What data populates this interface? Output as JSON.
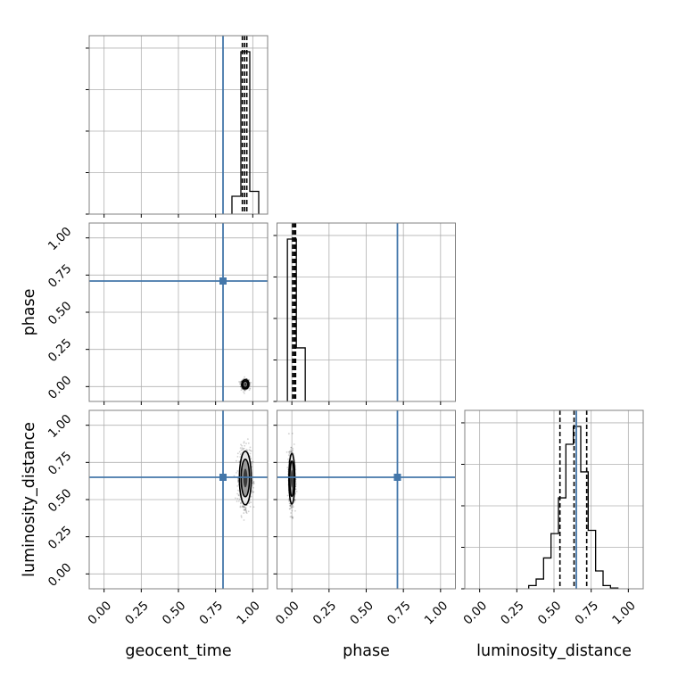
{
  "chart_data": {
    "type": "corner",
    "parameters": [
      "geocent_time",
      "phase",
      "luminosity_distance"
    ],
    "truths": [
      0.8,
      0.71,
      0.65
    ],
    "truth_color": "#4477aa",
    "axis_range": [
      -0.1,
      1.1
    ],
    "tick_values": [
      0.0,
      0.25,
      0.5,
      0.75,
      1.0
    ],
    "tick_labels": [
      "0.00",
      "0.25",
      "0.50",
      "0.75",
      "1.00"
    ],
    "grid": true,
    "histograms": [
      {
        "parameter": "geocent_time",
        "bin_edges": [
          0.86,
          0.92,
          0.98,
          1.04
        ],
        "counts": [
          0.11,
          1.0,
          0.14
        ],
        "quantiles": [
          0.93,
          0.945,
          0.96
        ]
      },
      {
        "parameter": "phase",
        "bin_edges": [
          -0.03,
          0.03,
          0.09
        ],
        "counts": [
          1.0,
          0.33
        ],
        "quantiles": [
          0.005,
          0.015,
          0.025
        ]
      },
      {
        "parameter": "luminosity_distance",
        "bin_edges": [
          0.33,
          0.38,
          0.43,
          0.48,
          0.53,
          0.58,
          0.63,
          0.68,
          0.73,
          0.78,
          0.83,
          0.88,
          0.93
        ],
        "counts": [
          0.02,
          0.06,
          0.19,
          0.34,
          0.56,
          0.89,
          1.0,
          0.72,
          0.36,
          0.11,
          0.02,
          0.005
        ],
        "quantiles": [
          0.54,
          0.635,
          0.72
        ]
      }
    ],
    "scatter_panels": [
      {
        "x": "geocent_time",
        "y": "phase",
        "center": [
          0.95,
          0.015
        ],
        "spread": [
          0.012,
          0.015
        ]
      },
      {
        "x": "geocent_time",
        "y": "luminosity_distance",
        "center": [
          0.95,
          0.645
        ],
        "spread": [
          0.02,
          0.09
        ]
      },
      {
        "x": "phase",
        "y": "luminosity_distance",
        "center": [
          0.0,
          0.64
        ],
        "spread": [
          0.01,
          0.085
        ]
      }
    ]
  }
}
